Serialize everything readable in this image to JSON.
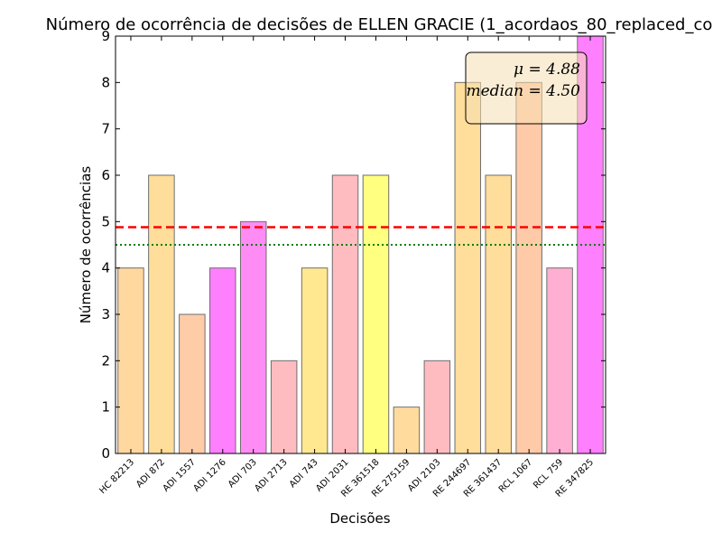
{
  "chart_data": {
    "type": "bar",
    "title": "Número de ocorrência de decisões de ELLEN GRACIE (1_acordaos_80_replaced_co",
    "xlabel": "Decisões",
    "ylabel": "Número de ocorrências",
    "ylim": [
      0,
      9
    ],
    "yticks": [
      0,
      1,
      2,
      3,
      4,
      5,
      6,
      7,
      8,
      9
    ],
    "categories": [
      "HC 82213",
      "ADI 872",
      "ADI 1557",
      "ADI 1276",
      "ADI 703",
      "ADI 2713",
      "ADI 743",
      "ADI 2031",
      "RE 361518",
      "RE 275159",
      "ADI 2103",
      "RE 244697",
      "RE 361437",
      "RCL 1067",
      "RCL 759",
      "RE 347825"
    ],
    "values": [
      4,
      6,
      3,
      4,
      5,
      2,
      4,
      6,
      6,
      1,
      2,
      8,
      6,
      8,
      4,
      9
    ],
    "bar_colors": [
      "#ffd8a0",
      "#ffdd9a",
      "#ffcca8",
      "#ff80ff",
      "#ff8cf5",
      "#ffbcc0",
      "#ffe890",
      "#ffbcc0",
      "#ffff80",
      "#ffdc9e",
      "#ffbcc0",
      "#ffdd9a",
      "#ffdd9a",
      "#ffcaa8",
      "#ffb0d2",
      "#ff80ff"
    ],
    "mean": 4.88,
    "median": 4.5,
    "mean_label": "μ = 4.88",
    "median_label": "median = 4.50",
    "mean_color": "#ff0000",
    "median_color": "#007f00",
    "grid": false,
    "legend_box": "top-right"
  }
}
